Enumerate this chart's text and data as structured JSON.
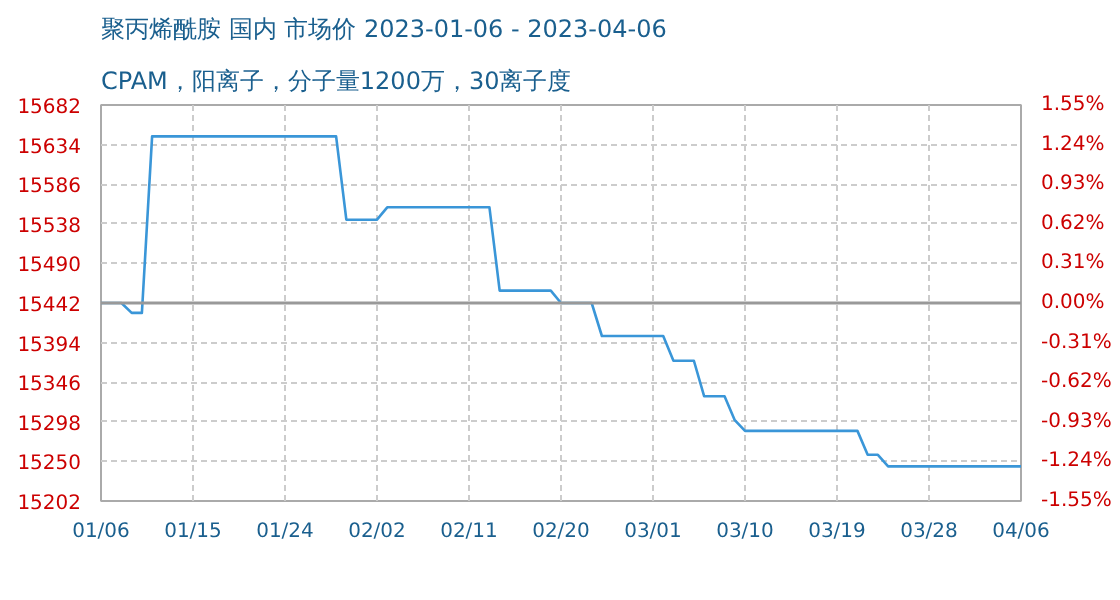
{
  "chart_data": {
    "type": "line",
    "title": "聚丙烯酰胺 国内 市场价 2023-01-06 - 2023-04-06",
    "subtitle": "CPAM，阳离子，分子量1200万，30离子度",
    "x": [
      "2023-01-06",
      "2023-01-08",
      "2023-01-09",
      "2023-01-10",
      "2023-01-11",
      "2023-01-29",
      "2023-01-30",
      "2023-02-02",
      "2023-02-03",
      "2023-02-13",
      "2023-02-14",
      "2023-02-19",
      "2023-02-20",
      "2023-02-23",
      "2023-02-24",
      "2023-03-02",
      "2023-03-03",
      "2023-03-05",
      "2023-03-06",
      "2023-03-08",
      "2023-03-09",
      "2023-03-10",
      "2023-03-21",
      "2023-03-22",
      "2023-03-23",
      "2023-03-24",
      "2023-04-06"
    ],
    "series": [
      {
        "color": "#3a96d8",
        "values": [
          15442,
          15442,
          15430,
          15430,
          15644,
          15644,
          15543,
          15543,
          15558,
          15558,
          15457,
          15457,
          15442,
          15442,
          15402,
          15402,
          15372,
          15372,
          15329,
          15329,
          15300,
          15287,
          15287,
          15258,
          15258,
          15244,
          15244
        ]
      }
    ],
    "xlim": [
      "2023-01-06",
      "2023-04-06"
    ],
    "xticks": [
      {
        "value": "2023-01-06",
        "label": "01/06"
      },
      {
        "value": "2023-01-15",
        "label": "01/15"
      },
      {
        "value": "2023-01-24",
        "label": "01/24"
      },
      {
        "value": "2023-02-02",
        "label": "02/02"
      },
      {
        "value": "2023-02-11",
        "label": "02/11"
      },
      {
        "value": "2023-02-20",
        "label": "02/20"
      },
      {
        "value": "2023-03-01",
        "label": "03/01"
      },
      {
        "value": "2023-03-10",
        "label": "03/10"
      },
      {
        "value": "2023-03-19",
        "label": "03/19"
      },
      {
        "value": "2023-03-28",
        "label": "03/28"
      },
      {
        "value": "2023-04-06",
        "label": "04/06"
      }
    ],
    "ylim": [
      15202,
      15682
    ],
    "yticks": [
      15202,
      15250,
      15298,
      15346,
      15394,
      15442,
      15490,
      15538,
      15586,
      15634,
      15682
    ],
    "y2lim": [
      -1.55,
      1.55
    ],
    "y2ticks": [
      {
        "value": -1.55,
        "label": "-1.55%"
      },
      {
        "value": -1.24,
        "label": "-1.24%"
      },
      {
        "value": -0.93,
        "label": "-0.93%"
      },
      {
        "value": -0.62,
        "label": "-0.62%"
      },
      {
        "value": -0.31,
        "label": "-0.31%"
      },
      {
        "value": 0,
        "label": "0.00%"
      },
      {
        "value": 0.31,
        "label": "0.31%"
      },
      {
        "value": 0.62,
        "label": "0.62%"
      },
      {
        "value": 0.93,
        "label": "0.93%"
      },
      {
        "value": 1.24,
        "label": "1.24%"
      },
      {
        "value": 1.55,
        "label": "1.55%"
      }
    ],
    "ref_lines": [
      {
        "axis": "y",
        "value": 15442,
        "color": "#999999",
        "line_style": "solid"
      }
    ],
    "grid": true
  }
}
